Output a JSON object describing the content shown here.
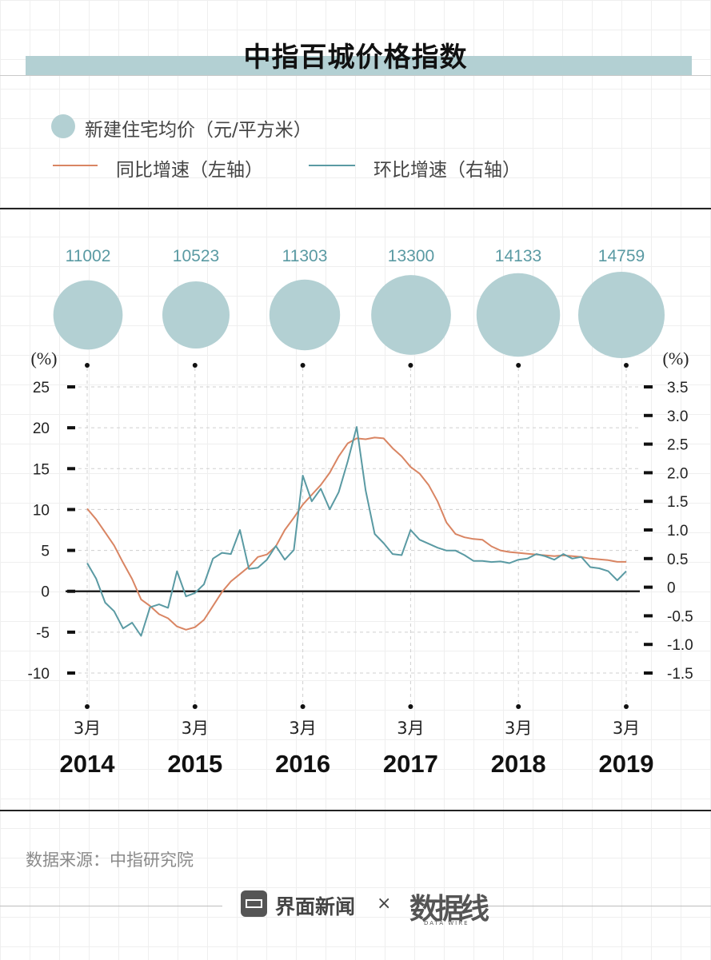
{
  "title": "中指百城价格指数",
  "legend": {
    "bubble": "新建住宅均价（元/平方米）",
    "yoy": "同比增速（左轴）",
    "mom": "环比增速（右轴）"
  },
  "source": "数据来源：中指研究院",
  "footer": {
    "brand": "界面新闻",
    "times": "×",
    "partner": "数据线",
    "partner_sub": "DATA WIRE"
  },
  "colors": {
    "yoy": "#d98563",
    "mom": "#5a9aa3",
    "bubble": "#b3d0d3",
    "price_label": "#5a9aa3"
  },
  "chart_data": {
    "type": "line",
    "left_axis": {
      "unit_label": "(%)",
      "ticks": [
        25,
        20,
        15,
        10,
        5,
        0,
        -5,
        -10
      ],
      "tick_labels": [
        "25",
        "20",
        "15",
        "10",
        "5",
        "0",
        "-5",
        "-10"
      ],
      "range": [
        -13,
        25
      ]
    },
    "right_axis": {
      "unit_label": "(%)",
      "ticks": [
        3.5,
        3.0,
        2.5,
        2.0,
        1.5,
        1.0,
        0.5,
        0,
        -0.5,
        -1.0,
        -1.5
      ],
      "tick_labels": [
        "3.5",
        "3.0",
        "2.5",
        "2.0",
        "1.5",
        "1.0",
        "0.5",
        "0",
        "-0.5",
        "-1.0",
        "-1.5"
      ],
      "range": [
        -1.82,
        3.5
      ]
    },
    "year_ticks": [
      {
        "month_label": "3月",
        "year": "2014",
        "price": "11002",
        "price_value": 11002
      },
      {
        "month_label": "3月",
        "year": "2015",
        "price": "10523",
        "price_value": 10523
      },
      {
        "month_label": "3月",
        "year": "2016",
        "price": "11303",
        "price_value": 11303
      },
      {
        "month_label": "3月",
        "year": "2017",
        "price": "13300",
        "price_value": 13300
      },
      {
        "month_label": "3月",
        "year": "2018",
        "price": "14133",
        "price_value": 14133
      },
      {
        "month_label": "3月",
        "year": "2019",
        "price": "14759",
        "price_value": 14759
      }
    ],
    "x": [
      "2014-03",
      "2014-04",
      "2014-05",
      "2014-06",
      "2014-07",
      "2014-08",
      "2014-09",
      "2014-10",
      "2014-11",
      "2014-12",
      "2015-01",
      "2015-02",
      "2015-03",
      "2015-04",
      "2015-05",
      "2015-06",
      "2015-07",
      "2015-08",
      "2015-09",
      "2015-10",
      "2015-11",
      "2015-12",
      "2016-01",
      "2016-02",
      "2016-03",
      "2016-04",
      "2016-05",
      "2016-06",
      "2016-07",
      "2016-08",
      "2016-09",
      "2016-10",
      "2016-11",
      "2016-12",
      "2017-01",
      "2017-02",
      "2017-03",
      "2017-04",
      "2017-05",
      "2017-06",
      "2017-07",
      "2017-08",
      "2017-09",
      "2017-10",
      "2017-11",
      "2017-12",
      "2018-01",
      "2018-02",
      "2018-03",
      "2018-04",
      "2018-05",
      "2018-06",
      "2018-07",
      "2018-08",
      "2018-09",
      "2018-10",
      "2018-11",
      "2018-12",
      "2019-01",
      "2019-02",
      "2019-03"
    ],
    "series": [
      {
        "name": "同比增速（左轴）",
        "axis": "left",
        "values": [
          10.1,
          8.8,
          7.2,
          5.6,
          3.5,
          1.5,
          -1.0,
          -1.8,
          -2.8,
          -3.3,
          -4.3,
          -4.7,
          -4.4,
          -3.5,
          -1.8,
          -0.1,
          1.2,
          2.1,
          3.0,
          4.2,
          4.5,
          5.5,
          7.5,
          9.0,
          10.6,
          11.8,
          13.0,
          14.5,
          16.5,
          18.1,
          18.7,
          18.6,
          18.8,
          18.7,
          17.5,
          16.5,
          15.2,
          14.4,
          13.0,
          11.0,
          8.4,
          7.0,
          6.6,
          6.4,
          6.3,
          5.5,
          5.0,
          4.8,
          4.7,
          4.6,
          4.5,
          4.4,
          4.3,
          4.4,
          4.3,
          4.2,
          4.0,
          3.9,
          3.8,
          3.6,
          3.6
        ]
      },
      {
        "name": "环比增速（右轴）",
        "axis": "right",
        "values": [
          0.42,
          0.15,
          -0.27,
          -0.42,
          -0.72,
          -0.62,
          -0.85,
          -0.35,
          -0.3,
          -0.36,
          0.28,
          -0.16,
          -0.1,
          0.05,
          0.5,
          0.6,
          0.58,
          1.0,
          0.32,
          0.34,
          0.48,
          0.72,
          0.48,
          0.65,
          1.95,
          1.5,
          1.72,
          1.36,
          1.66,
          2.2,
          2.8,
          1.69,
          0.93,
          0.77,
          0.58,
          0.56,
          1.0,
          0.83,
          0.76,
          0.69,
          0.64,
          0.64,
          0.56,
          0.46,
          0.46,
          0.44,
          0.45,
          0.42,
          0.48,
          0.5,
          0.58,
          0.54,
          0.48,
          0.58,
          0.5,
          0.53,
          0.35,
          0.33,
          0.28,
          0.12,
          0.28
        ]
      }
    ]
  }
}
